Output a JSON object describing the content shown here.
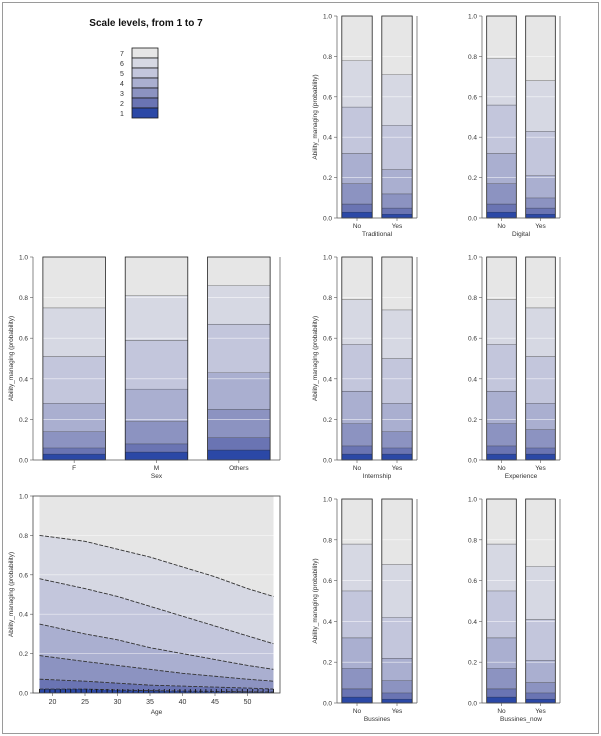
{
  "legend": {
    "title": "Scale levels, from 1 to 7",
    "levels": [
      "7",
      "6",
      "5",
      "4",
      "3",
      "2",
      "1"
    ],
    "colors": [
      "#e6e6e6",
      "#d6d8e3",
      "#c3c6dc",
      "#aaafd0",
      "#8c93c1",
      "#6a74b3",
      "#2b48a6"
    ]
  },
  "chart_data": [
    {
      "type": "bar",
      "stacked": "cumulative",
      "panel": "traditional",
      "xlabel": "Traditional",
      "ylabel": "Ability_managing (probability)",
      "ylim": [
        0,
        1
      ],
      "yticks": [
        "0.0",
        "0.2",
        "0.4",
        "0.6",
        "0.8",
        "1.0"
      ],
      "categories": [
        "No",
        "Yes"
      ],
      "cumulative": [
        [
          0.03,
          0.07,
          0.17,
          0.32,
          0.55,
          0.78,
          1.0
        ],
        [
          0.02,
          0.05,
          0.12,
          0.24,
          0.46,
          0.71,
          1.0
        ]
      ]
    },
    {
      "type": "bar",
      "stacked": "cumulative",
      "panel": "digital",
      "xlabel": "Digital",
      "ylabel": "",
      "ylim": [
        0,
        1
      ],
      "yticks": [
        "0.0",
        "0.2",
        "0.4",
        "0.6",
        "0.8",
        "1.0"
      ],
      "categories": [
        "No",
        "Yes"
      ],
      "cumulative": [
        [
          0.03,
          0.07,
          0.17,
          0.32,
          0.56,
          0.79,
          1.0
        ],
        [
          0.02,
          0.05,
          0.1,
          0.21,
          0.43,
          0.68,
          1.0
        ]
      ]
    },
    {
      "type": "bar",
      "stacked": "cumulative",
      "panel": "sex",
      "xlabel": "Sex",
      "ylabel": "Ability_managing (probability)",
      "ylim": [
        0,
        1
      ],
      "yticks": [
        "0.0",
        "0.2",
        "0.4",
        "0.6",
        "0.8",
        "1.0"
      ],
      "categories": [
        "F",
        "M",
        "Others"
      ],
      "cumulative": [
        [
          0.03,
          0.06,
          0.14,
          0.28,
          0.51,
          0.75,
          1.0
        ],
        [
          0.04,
          0.08,
          0.19,
          0.35,
          0.59,
          0.81,
          1.0
        ],
        [
          0.05,
          0.11,
          0.25,
          0.43,
          0.67,
          0.86,
          1.0
        ]
      ]
    },
    {
      "type": "bar",
      "stacked": "cumulative",
      "panel": "internship",
      "xlabel": "Internship",
      "ylabel": "Ability_managing (probability)",
      "ylim": [
        0,
        1
      ],
      "yticks": [
        "0.0",
        "0.2",
        "0.4",
        "0.6",
        "0.8",
        "1.0"
      ],
      "categories": [
        "No",
        "Yes"
      ],
      "cumulative": [
        [
          0.03,
          0.07,
          0.18,
          0.34,
          0.57,
          0.79,
          1.0
        ],
        [
          0.03,
          0.06,
          0.14,
          0.28,
          0.5,
          0.74,
          1.0
        ]
      ]
    },
    {
      "type": "bar",
      "stacked": "cumulative",
      "panel": "experience",
      "xlabel": "Experience",
      "ylabel": "",
      "ylim": [
        0,
        1
      ],
      "yticks": [
        "0.0",
        "0.2",
        "0.4",
        "0.6",
        "0.8",
        "1.0"
      ],
      "categories": [
        "No",
        "Yes"
      ],
      "cumulative": [
        [
          0.03,
          0.07,
          0.18,
          0.34,
          0.57,
          0.79,
          1.0
        ],
        [
          0.03,
          0.06,
          0.15,
          0.28,
          0.51,
          0.75,
          1.0
        ]
      ]
    },
    {
      "type": "area",
      "stacked": "cumulative",
      "panel": "age",
      "xlabel": "Age",
      "ylabel": "Ability_managing (probability)",
      "xlim": [
        17,
        55
      ],
      "ylim": [
        0,
        1
      ],
      "xticks": [
        20,
        25,
        30,
        35,
        40,
        45,
        50
      ],
      "yticks": [
        "0.0",
        "0.2",
        "0.4",
        "0.6",
        "0.8",
        "1.0"
      ],
      "x": [
        18,
        25,
        30,
        35,
        40,
        45,
        50,
        54
      ],
      "cumulative": [
        [
          0.02,
          0.02,
          0.015,
          0.012,
          0.01,
          0.008,
          0.006,
          0.005
        ],
        [
          0.07,
          0.06,
          0.05,
          0.04,
          0.035,
          0.03,
          0.025,
          0.02
        ],
        [
          0.19,
          0.16,
          0.14,
          0.12,
          0.1,
          0.085,
          0.07,
          0.06
        ],
        [
          0.35,
          0.3,
          0.27,
          0.23,
          0.2,
          0.17,
          0.14,
          0.12
        ],
        [
          0.58,
          0.53,
          0.49,
          0.44,
          0.39,
          0.34,
          0.29,
          0.25
        ],
        [
          0.8,
          0.77,
          0.73,
          0.69,
          0.64,
          0.59,
          0.53,
          0.49
        ],
        [
          1.0,
          1.0,
          1.0,
          1.0,
          1.0,
          1.0,
          1.0,
          1.0
        ]
      ]
    },
    {
      "type": "bar",
      "stacked": "cumulative",
      "panel": "bussines",
      "xlabel": "Bussines",
      "ylabel": "Ability_managing (probability)",
      "ylim": [
        0,
        1
      ],
      "yticks": [
        "0.0",
        "0.2",
        "0.4",
        "0.6",
        "0.8",
        "1.0"
      ],
      "categories": [
        "No",
        "Yes"
      ],
      "cumulative": [
        [
          0.03,
          0.07,
          0.17,
          0.32,
          0.55,
          0.78,
          1.0
        ],
        [
          0.02,
          0.05,
          0.11,
          0.22,
          0.42,
          0.68,
          1.0
        ]
      ]
    },
    {
      "type": "bar",
      "stacked": "cumulative",
      "panel": "bussines-now",
      "xlabel": "Bussines_now",
      "ylabel": "",
      "ylim": [
        0,
        1
      ],
      "yticks": [
        "0.0",
        "0.2",
        "0.4",
        "0.6",
        "0.8",
        "1.0"
      ],
      "categories": [
        "No",
        "Yes"
      ],
      "cumulative": [
        [
          0.03,
          0.07,
          0.17,
          0.32,
          0.55,
          0.78,
          1.0
        ],
        [
          0.02,
          0.05,
          0.1,
          0.21,
          0.41,
          0.67,
          1.0
        ]
      ]
    }
  ]
}
